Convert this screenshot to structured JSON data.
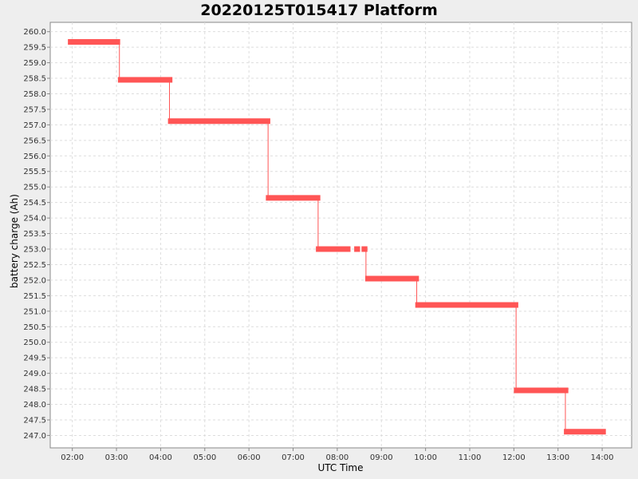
{
  "chart_data": {
    "type": "line",
    "title": "20220125T015417 Platform",
    "xlabel": "UTC Time",
    "ylabel": "battery charge (Ah)",
    "xlim": [
      "01:30",
      "14:40"
    ],
    "ylim": [
      246.6,
      260.3
    ],
    "x_ticks": [
      "02:00",
      "03:00",
      "04:00",
      "05:00",
      "06:00",
      "07:00",
      "08:00",
      "09:00",
      "10:00",
      "11:00",
      "12:00",
      "13:00",
      "14:00"
    ],
    "y_ticks": [
      "247.0",
      "247.5",
      "248.0",
      "248.5",
      "249.0",
      "249.5",
      "250.0",
      "250.5",
      "251.0",
      "251.5",
      "252.0",
      "252.5",
      "253.0",
      "253.5",
      "254.0",
      "254.5",
      "255.0",
      "255.5",
      "256.0",
      "256.5",
      "257.0",
      "257.5",
      "258.0",
      "258.5",
      "259.0",
      "259.5",
      "260.0"
    ],
    "grid": true,
    "series": [
      {
        "color": "#ff5555",
        "segments": [
          {
            "start": "01:54",
            "end": "03:05",
            "y": 259.67
          },
          {
            "start": "03:02",
            "end": "04:16",
            "y": 258.45
          },
          {
            "start": "04:10",
            "end": "06:29",
            "y": 257.12
          },
          {
            "start": "06:23",
            "end": "07:37",
            "y": 254.65
          },
          {
            "start": "07:31",
            "end": "08:18",
            "y": 253.0
          },
          {
            "start": "08:23",
            "end": "08:31",
            "y": 253.0
          },
          {
            "start": "08:33",
            "end": "08:41",
            "y": 253.0
          },
          {
            "start": "08:38",
            "end": "09:51",
            "y": 252.05
          },
          {
            "start": "09:46",
            "end": "12:06",
            "y": 251.2
          },
          {
            "start": "12:00",
            "end": "13:14",
            "y": 248.45
          },
          {
            "start": "13:08",
            "end": "14:05",
            "y": 247.12
          }
        ],
        "connectors": [
          {
            "x": "03:04",
            "y_from": 259.67,
            "y_to": 258.45
          },
          {
            "x": "04:12",
            "y_from": 258.45,
            "y_to": 257.12
          },
          {
            "x": "06:26",
            "y_from": 257.12,
            "y_to": 254.65
          },
          {
            "x": "07:34",
            "y_from": 254.65,
            "y_to": 253.0
          },
          {
            "x": "08:39",
            "y_from": 253.0,
            "y_to": 252.05
          },
          {
            "x": "09:48",
            "y_from": 252.05,
            "y_to": 251.2
          },
          {
            "x": "12:03",
            "y_from": 251.2,
            "y_to": 248.45
          },
          {
            "x": "13:10",
            "y_from": 248.45,
            "y_to": 247.12
          }
        ]
      }
    ]
  }
}
